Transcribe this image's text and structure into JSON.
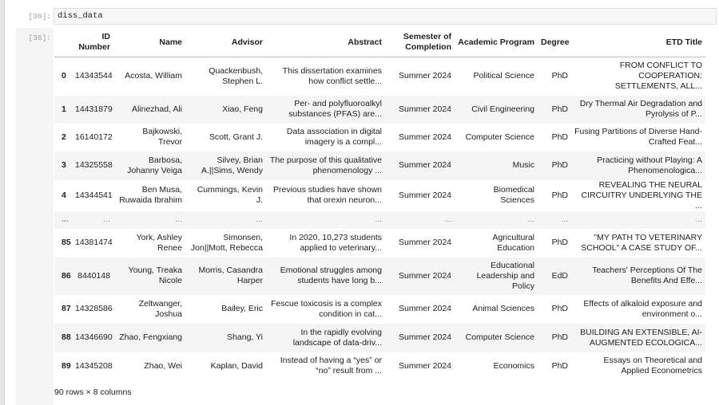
{
  "input": {
    "prompt": "[36]:",
    "code": "diss_data"
  },
  "output": {
    "prompt": "[36]:"
  },
  "table": {
    "columns": [
      "",
      "ID Number",
      "Name",
      "Advisor",
      "Abstract",
      "Semester of Completion",
      "Academic Program",
      "Degree",
      "ETD Title"
    ],
    "rows": [
      [
        "0",
        "14343544",
        "Acosta, William",
        "Quackenbush, Stephen L.",
        "This dissertation examines how conflict settle...",
        "Summer 2024",
        "Political Science",
        "PhD",
        "FROM CONFLICT TO COOPERATION: SETTLEMENTS, ALL..."
      ],
      [
        "1",
        "14431879",
        "Alinezhad, Ali",
        "Xiao, Feng",
        "Per- and polyfluoroalkyl substances (PFAS) are...",
        "Summer 2024",
        "Civil Engineering",
        "PhD",
        "Dry Thermal Air Degradation and Pyrolysis of P..."
      ],
      [
        "2",
        "16140172",
        "Bajkowski, Trevor",
        "Scott, Grant J.",
        "Data association in digital imagery is a compl...",
        "Summer 2024",
        "Computer Science",
        "PhD",
        "Fusing Partitions of Diverse Hand-Crafted Feat..."
      ],
      [
        "3",
        "14325558",
        "Barbosa, Johanny Veiga",
        "Silvey, Brian A.||Sims, Wendy",
        "The purpose of this qualitative phenomenology ...",
        "Summer 2024",
        "Music",
        "PhD",
        "Practicing without Playing: A Phenomenologica..."
      ],
      [
        "4",
        "14344541",
        "Ben Musa, Ruwaida Ibrahim",
        "Cummings, Kevin J.",
        "Previous studies have shown that orexin neuron...",
        "Summer 2024",
        "Biomedical Sciences",
        "PhD",
        "REVEALING THE NEURAL CIRCUITRY UNDERLYING THE ..."
      ],
      [
        "...",
        "...",
        "...",
        "...",
        "...",
        "...",
        "...",
        "...",
        "..."
      ],
      [
        "85",
        "14381474",
        "York, Ashley Renee",
        "Simonsen, Jon||Mott, Rebecca",
        "In 2020, 10,273 students applied to veterinary...",
        "Summer 2024",
        "Agricultural Education",
        "PhD",
        "\"MY PATH TO VETERINARY SCHOOL\" A CASE STUDY OF..."
      ],
      [
        "86",
        "8440148",
        "Young, Treaka Nicole",
        "Morris, Casandra Harper",
        "Emotional struggles among students have long b...",
        "Summer 2024",
        "Educational Leadership and Policy",
        "EdD",
        "Teachers' Perceptions Of The Benefits And Effe..."
      ],
      [
        "87",
        "14328586",
        "Zeltwanger, Joshua",
        "Bailey, Eric",
        "Fescue toxicosis is a complex condition in cat...",
        "Summer 2024",
        "Animal Sciences",
        "PhD",
        "Effects of alkaloid exposure and environment o..."
      ],
      [
        "88",
        "14346690",
        "Zhao, Fengxiang",
        "Shang, Yi",
        "In the rapidly evolving landscape of data-driv...",
        "Summer 2024",
        "Computer Science",
        "PhD",
        "BUILDING AN EXTENSIBLE, AI-AUGMENTED ECOLOGICA..."
      ],
      [
        "89",
        "14345208",
        "Zhao, Wei",
        "Kaplan, David",
        "Instead of having a “yes” or “no” result from ...",
        "Summer 2024",
        "Economics",
        "PhD",
        "Essays on Theoretical and Applied Econometrics"
      ]
    ]
  },
  "footer": "90 rows × 8 columns"
}
